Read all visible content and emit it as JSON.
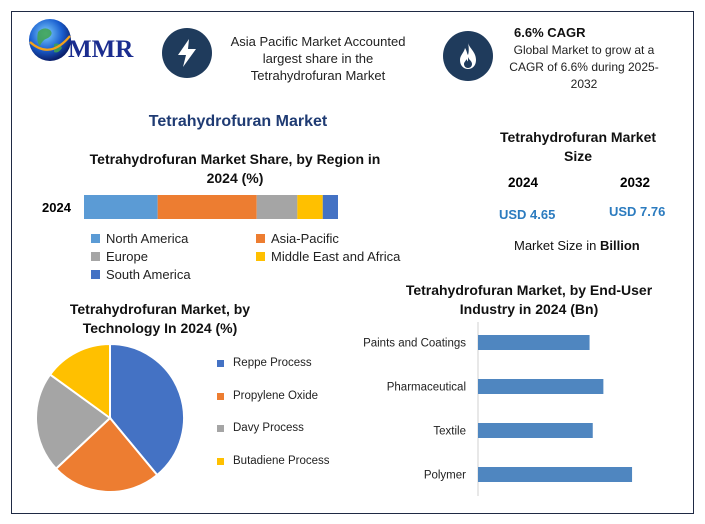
{
  "header": {
    "logo_text": "MMR",
    "insight_1": "Asia Pacific Market Accounted largest share in the Tetrahydrofuran Market",
    "cagr_title": "6.6% CAGR",
    "cagr_text": "Global Market to grow at a CAGR of 6.6% during 2025-2032",
    "icon_1": "lightning-icon",
    "icon_2": "flame-icon"
  },
  "main_title": "Tetrahydrofuran Market",
  "market_size": {
    "title": "Tetrahydrofuran Market Size",
    "year_1": "2024",
    "year_2": "2032",
    "value_1": "USD 4.65",
    "value_2": "USD 7.76",
    "unit_prefix": "Market Size in ",
    "unit_bold": "Billion"
  },
  "colors": {
    "north_america": "#5b9bd5",
    "asia_pacific": "#ed7d31",
    "europe": "#a5a5a5",
    "middle_east": "#ffc000",
    "south_america": "#4472c4",
    "bar_blue": "#4f86c0"
  },
  "chart_data": [
    {
      "type": "bar",
      "stacked": true,
      "orientation": "horizontal",
      "title": "Tetrahydrofuran Market Share, by Region in 2024 (%)",
      "categories": [
        "2024"
      ],
      "series": [
        {
          "name": "North America",
          "values": [
            29
          ]
        },
        {
          "name": "Asia-Pacific",
          "values": [
            39
          ]
        },
        {
          "name": "Europe",
          "values": [
            16
          ]
        },
        {
          "name": "Middle East and Africa",
          "values": [
            10
          ]
        },
        {
          "name": "South America",
          "values": [
            6
          ]
        }
      ],
      "legend_placement": "bottom",
      "grid": false
    },
    {
      "type": "pie",
      "title": "Tetrahydrofuran Market, by Technology In 2024 (%)",
      "labels": [
        "Reppe Process",
        "Propylene Oxide",
        "Davy Process",
        "Butadiene Process"
      ],
      "values": [
        39,
        24,
        22,
        15
      ],
      "colors": [
        "#4472c4",
        "#ed7d31",
        "#a5a5a5",
        "#ffc000"
      ],
      "legend_placement": "right"
    },
    {
      "type": "bar",
      "orientation": "horizontal",
      "title": "Tetrahydrofuran Market, by End-User Industry in 2024 (Bn)",
      "categories": [
        "Paints and Coatings",
        "Pharmaceutical",
        "Textile",
        "Polymer"
      ],
      "values": [
        1.05,
        1.18,
        1.08,
        1.45
      ],
      "xlim": [
        0,
        1.6
      ],
      "grid": false
    }
  ]
}
